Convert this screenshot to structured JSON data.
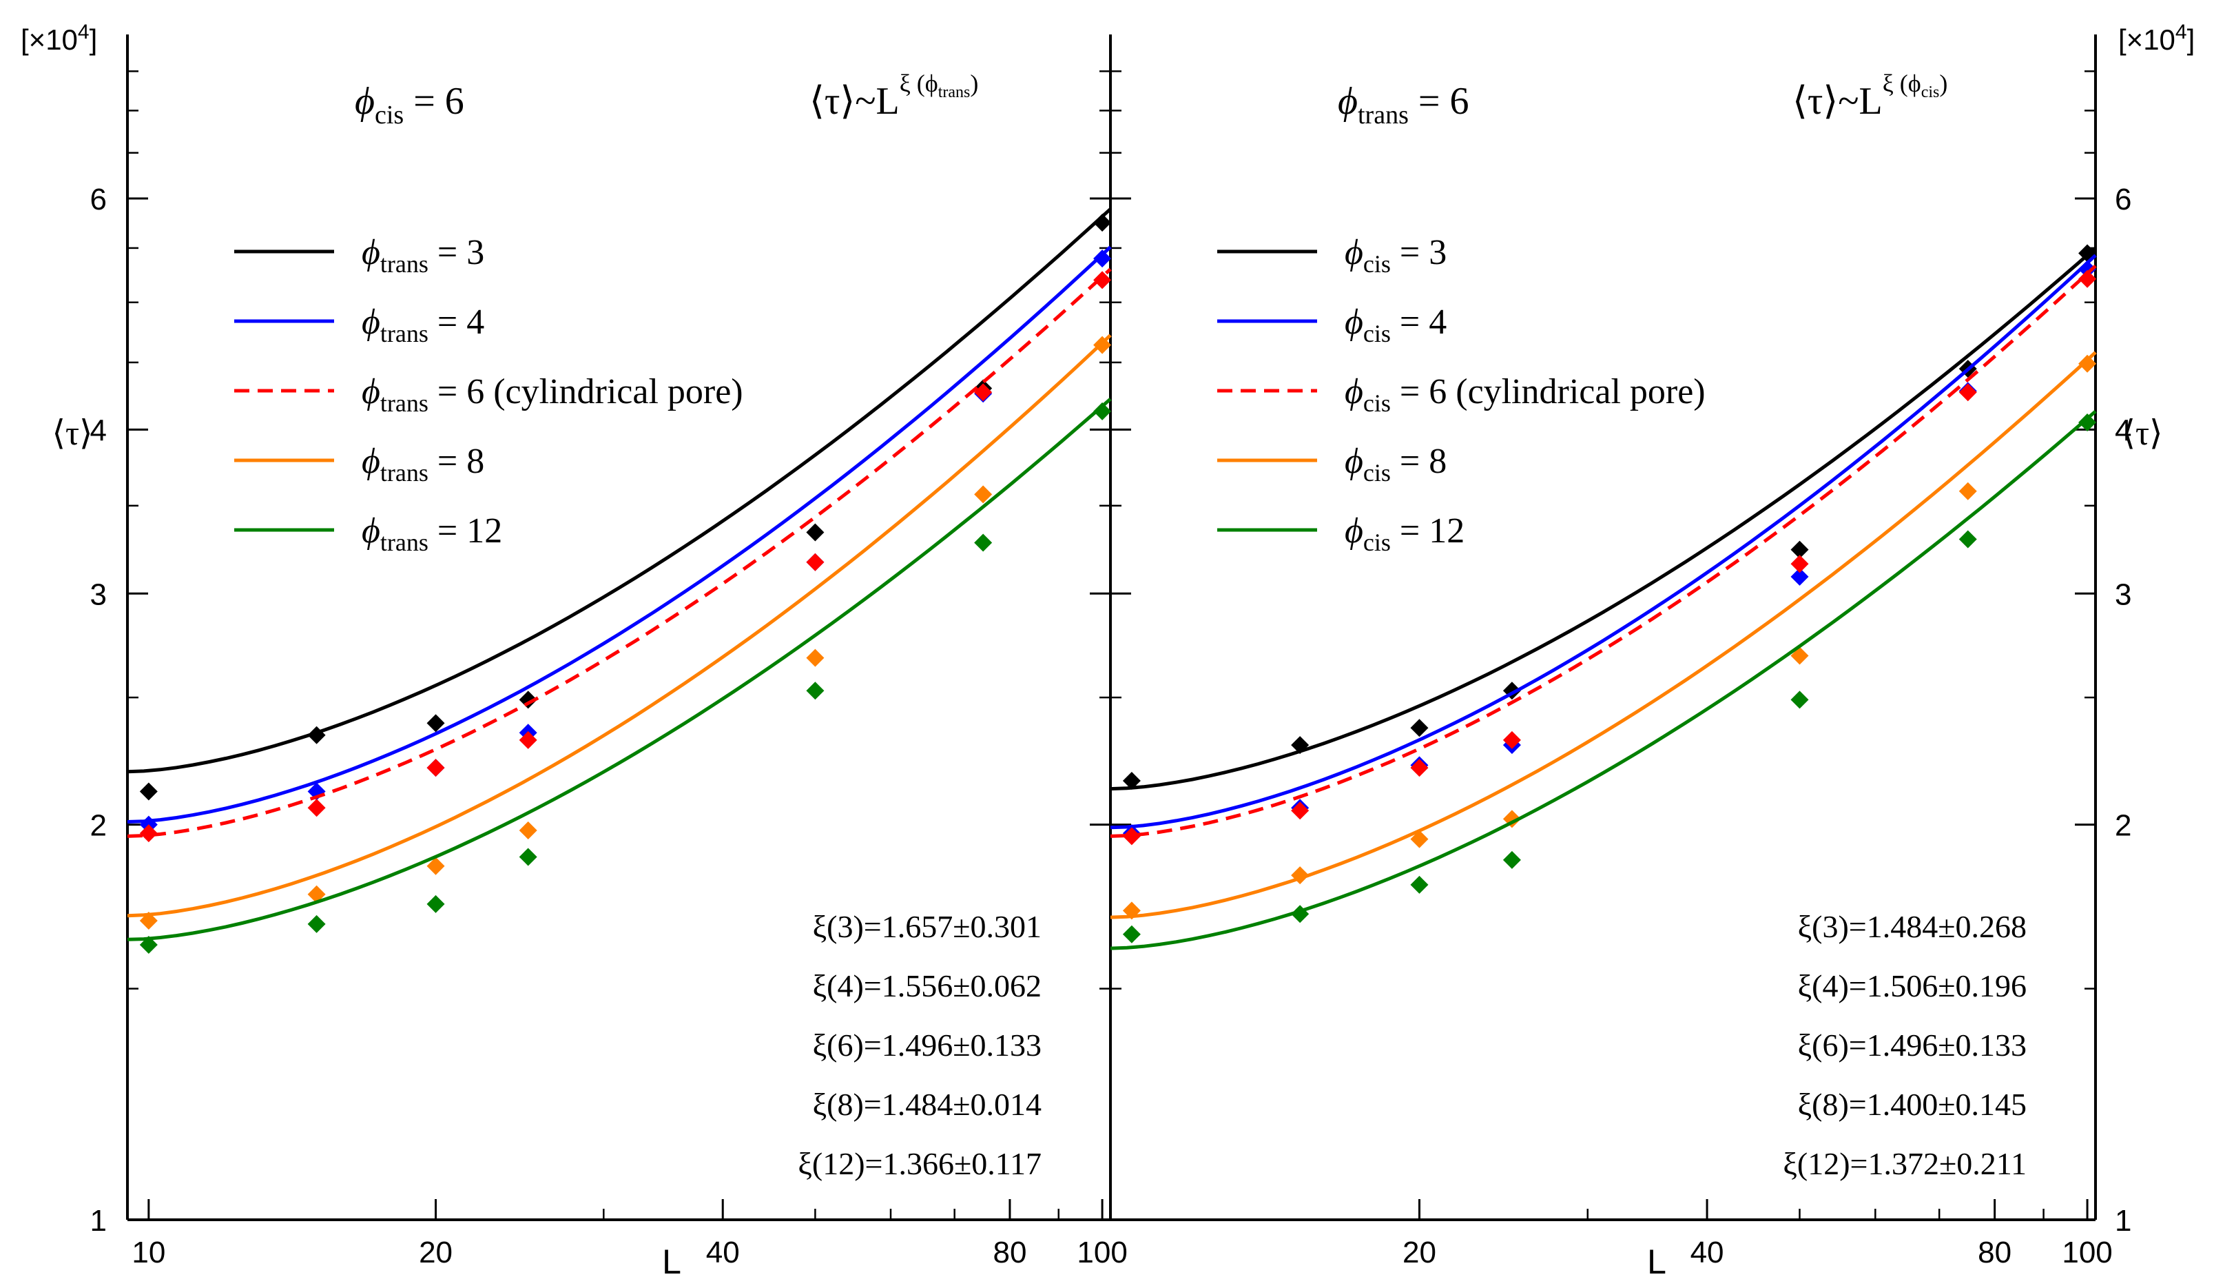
{
  "figure": {
    "multiplier_label": "[×10",
    "multiplier_exp": "4",
    "multiplier_close": "]",
    "ylabel": "⟨τ⟩",
    "xlabel": "L"
  },
  "chart_data": [
    {
      "type": "scatter",
      "panel": "left",
      "x_scale": "log",
      "y_scale": "log",
      "xlim": [
        9.5,
        102
      ],
      "ylim": [
        1,
        8
      ],
      "y_multiplier": "×10^4",
      "xlabel": "L",
      "ylabel": "⟨τ⟩",
      "x_tick_labels": [
        "10",
        "20",
        "40",
        "80",
        "100"
      ],
      "x_tick_values": [
        10,
        20,
        40,
        80,
        100
      ],
      "y_tick_labels": [
        "1",
        "2",
        "3",
        "4",
        "6"
      ],
      "y_tick_values": [
        1,
        2,
        3,
        4,
        6
      ],
      "title_left": {
        "symbol": "ϕ",
        "sub": "cis",
        "rest": " = 6"
      },
      "title_right": {
        "main": "⟨τ⟩~L",
        "sup": "ξ (ϕ",
        "sup_sub": "trans",
        "sup_close": ")"
      },
      "legend_position": "upper-left",
      "series": [
        {
          "name": "ϕtrans = 3",
          "legend_sub": "trans",
          "legend_rest": " = 3",
          "color": "#000000",
          "dash": false,
          "x": [
            10,
            15,
            20,
            25,
            50,
            75,
            100
          ],
          "y": [
            2.12,
            2.34,
            2.39,
            2.49,
            3.34,
            4.3,
            5.75
          ],
          "fit_x": [
            9.5,
            102
          ],
          "fit_y": [
            2.195,
            5.89
          ]
        },
        {
          "name": "ϕtrans = 4",
          "legend_sub": "trans",
          "legend_rest": " = 4",
          "color": "#0000ff",
          "dash": false,
          "x": [
            10,
            15,
            20,
            25,
            50,
            75,
            100
          ],
          "y": [
            2.0,
            2.12,
            2.21,
            2.35,
            3.17,
            4.26,
            5.4
          ],
          "fit_x": [
            9.5,
            102
          ],
          "fit_y": [
            2.01,
            5.51
          ]
        },
        {
          "name": "ϕtrans = 6 (cylindrical pore)",
          "legend_sub": "trans",
          "legend_rest": " = 6 (cylindrical pore)",
          "color": "#ff0000",
          "dash": true,
          "x": [
            10,
            15,
            20,
            25,
            50,
            75,
            100
          ],
          "y": [
            1.97,
            2.06,
            2.21,
            2.32,
            3.17,
            4.27,
            5.2
          ],
          "fit_x": [
            9.5,
            102
          ],
          "fit_y": [
            1.96,
            5.3
          ]
        },
        {
          "name": "ϕtrans = 8",
          "legend_sub": "trans",
          "legend_rest": " = 8",
          "color": "#ff8000",
          "dash": false,
          "x": [
            10,
            15,
            20,
            25,
            50,
            75,
            100
          ],
          "y": [
            1.69,
            1.77,
            1.86,
            1.98,
            2.68,
            3.57,
            4.64
          ],
          "fit_x": [
            9.5,
            102
          ],
          "fit_y": [
            1.705,
            4.72
          ]
        },
        {
          "name": "ϕtrans = 12",
          "legend_sub": "trans",
          "legend_rest": " = 12",
          "color": "#008000",
          "dash": false,
          "x": [
            10,
            15,
            20,
            25,
            50,
            75,
            100
          ],
          "y": [
            1.62,
            1.68,
            1.74,
            1.89,
            2.53,
            3.28,
            4.13
          ],
          "fit_x": [
            9.5,
            102
          ],
          "fit_y": [
            1.635,
            4.22
          ]
        }
      ],
      "annotations": [
        "ξ(3)=1.657±0.301",
        "ξ(4)=1.556±0.062",
        "ξ(6)=1.496±0.133",
        "ξ(8)=1.484±0.014",
        "ξ(12)=1.366±0.117"
      ]
    },
    {
      "type": "scatter",
      "panel": "right",
      "x_scale": "log",
      "y_scale": "log",
      "xlim": [
        9.5,
        102
      ],
      "ylim": [
        1,
        8
      ],
      "y_multiplier": "×10^4",
      "xlabel": "L",
      "ylabel": "⟨τ⟩",
      "x_tick_labels": [
        "20",
        "40",
        "80",
        "100"
      ],
      "x_tick_values": [
        20,
        40,
        80,
        100
      ],
      "y_tick_labels": [
        "1",
        "2",
        "3",
        "4",
        "6"
      ],
      "y_tick_values": [
        1,
        2,
        3,
        4,
        6
      ],
      "title_left": {
        "symbol": "ϕ",
        "sub": "trans",
        "rest": " = 6"
      },
      "title_right": {
        "main": "⟨τ⟩~L",
        "sup": "ξ (ϕ",
        "sup_sub": "cis",
        "sup_close": ")"
      },
      "legend_position": "upper-left",
      "series": [
        {
          "name": "ϕcis = 3",
          "legend_sub": "cis",
          "legend_rest": " = 3",
          "color": "#000000",
          "dash": false,
          "x": [
            10,
            15,
            20,
            25,
            50,
            75,
            100
          ],
          "y": [
            2.16,
            2.3,
            2.37,
            2.53,
            3.24,
            4.45,
            5.45
          ],
          "fit_x": [
            9.5,
            102
          ],
          "fit_y": [
            2.13,
            5.5
          ]
        },
        {
          "name": "ϕcis = 4",
          "legend_sub": "cis",
          "legend_rest": " = 4",
          "color": "#0000ff",
          "dash": false,
          "x": [
            10,
            15,
            20,
            25,
            50,
            75,
            100
          ],
          "y": [
            1.97,
            2.06,
            2.22,
            2.3,
            3.09,
            4.28,
            5.3
          ],
          "fit_x": [
            9.5,
            102
          ],
          "fit_y": [
            1.99,
            5.43
          ]
        },
        {
          "name": "ϕcis = 6 (cylindrical pore)",
          "legend_sub": "cis",
          "legend_rest": " = 6 (cylindrical pore)",
          "color": "#ff0000",
          "dash": true,
          "x": [
            10,
            15,
            20,
            25,
            50,
            75,
            100
          ],
          "y": [
            1.96,
            2.05,
            2.21,
            2.32,
            3.16,
            4.27,
            5.21
          ],
          "fit_x": [
            9.5,
            102
          ],
          "fit_y": [
            1.96,
            5.33
          ]
        },
        {
          "name": "ϕcis = 8",
          "legend_sub": "cis",
          "legend_rest": " = 8",
          "color": "#ff8000",
          "dash": false,
          "x": [
            10,
            15,
            20,
            25,
            50,
            75,
            100
          ],
          "y": [
            1.72,
            1.83,
            1.95,
            2.02,
            2.69,
            3.59,
            4.49
          ],
          "fit_x": [
            9.5,
            102
          ],
          "fit_y": [
            1.7,
            4.58
          ]
        },
        {
          "name": "ϕcis = 12",
          "legend_sub": "cis",
          "legend_rest": " = 12",
          "color": "#008000",
          "dash": false,
          "x": [
            10,
            15,
            20,
            25,
            50,
            75,
            100
          ],
          "y": [
            1.65,
            1.71,
            1.8,
            1.88,
            2.49,
            3.3,
            4.05
          ],
          "fit_x": [
            9.5,
            102
          ],
          "fit_y": [
            1.61,
            4.13
          ]
        }
      ],
      "annotations": [
        "ξ(3)=1.484±0.268",
        "ξ(4)=1.506±0.196",
        "ξ(6)=1.496±0.133",
        "ξ(8)=1.400±0.145",
        "ξ(12)=1.372±0.211"
      ]
    }
  ]
}
